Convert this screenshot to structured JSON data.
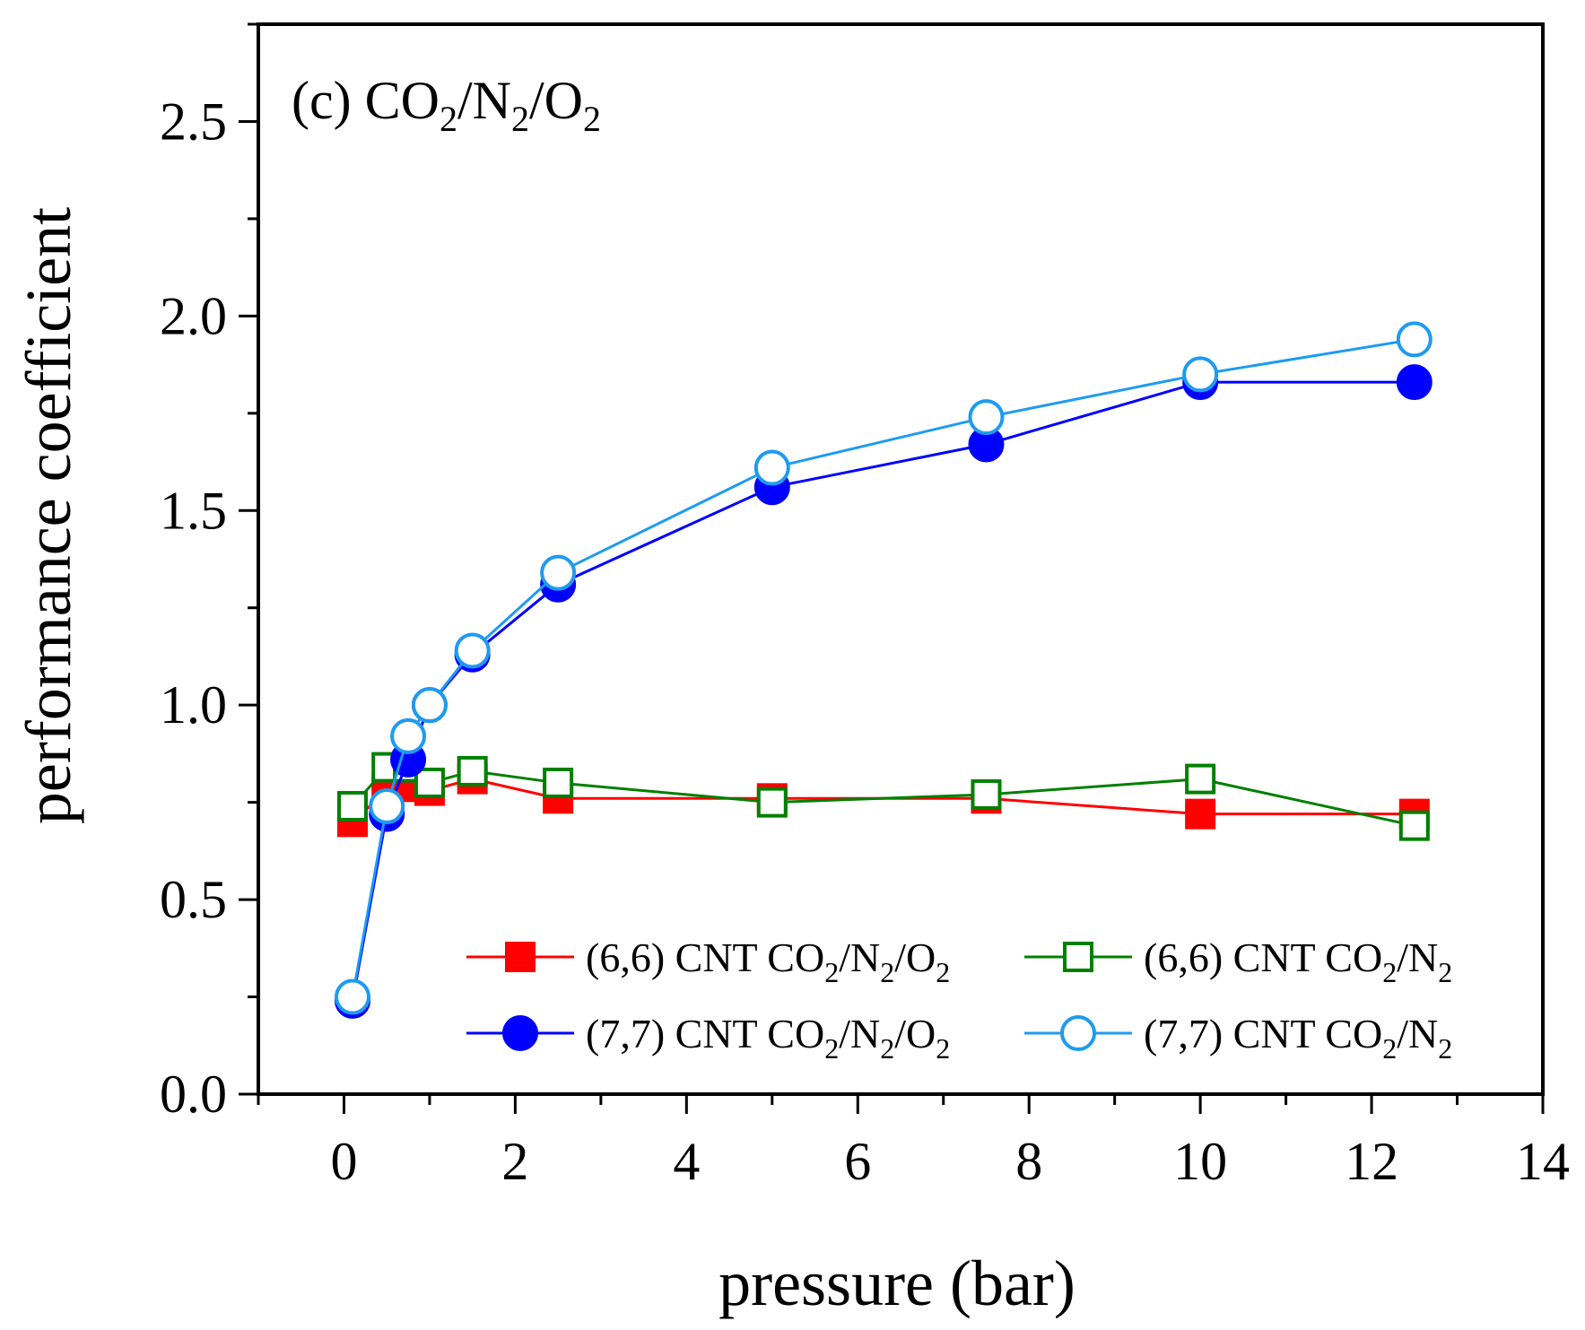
{
  "chart_data": {
    "type": "line",
    "panel_label": {
      "prefix": "(c) CO",
      "sub1": "2",
      "mid1": "/N",
      "sub2": "2",
      "mid2": "/O",
      "sub3": "2"
    },
    "xlabel": "pressure (bar)",
    "ylabel": "performance coefficient",
    "xlim": [
      -1,
      14
    ],
    "ylim": [
      0,
      2.75
    ],
    "x_ticks": [
      0,
      2,
      4,
      6,
      8,
      10,
      12,
      14
    ],
    "x_tick_labels": [
      "0",
      "2",
      "4",
      "6",
      "8",
      "10",
      "12",
      "14"
    ],
    "y_ticks": [
      0,
      0.5,
      1.0,
      1.5,
      2.0,
      2.5
    ],
    "y_tick_labels": [
      "0.0",
      "0.5",
      "1.0",
      "1.5",
      "2.0",
      "2.5"
    ],
    "grid": false,
    "legend_position": "bottom-right",
    "series": [
      {
        "legend": {
          "pre": "(6,6) CNT CO",
          "s1": "2",
          "m1": "/N",
          "s2": "2",
          "m2": "/O",
          "s3": "2"
        },
        "color": "#ff0000",
        "marker": "square-filled",
        "x": [
          0.1,
          0.5,
          0.75,
          1.0,
          1.5,
          2.5,
          5.0,
          7.5,
          10.0,
          12.5
        ],
        "y": [
          0.7,
          0.78,
          0.79,
          0.78,
          0.81,
          0.76,
          0.76,
          0.76,
          0.72,
          0.72
        ]
      },
      {
        "legend": {
          "pre": "(6,6) CNT CO",
          "s1": "2",
          "m1": "/N",
          "s2": "2",
          "m2": "",
          "s3": ""
        },
        "color": "#008000",
        "marker": "square-open",
        "x": [
          0.1,
          0.5,
          0.75,
          1.0,
          1.5,
          2.5,
          5.0,
          7.5,
          10.0,
          12.5
        ],
        "y": [
          0.74,
          0.84,
          0.84,
          0.8,
          0.83,
          0.8,
          0.75,
          0.77,
          0.81,
          0.69
        ]
      },
      {
        "legend": {
          "pre": "(7,7) CNT CO",
          "s1": "2",
          "m1": "/N",
          "s2": "2",
          "m2": "/O",
          "s3": "2"
        },
        "color": "#0000ff",
        "marker": "circle-filled",
        "x": [
          0.1,
          0.5,
          0.75,
          1.0,
          1.5,
          2.5,
          5.0,
          7.5,
          10.0,
          12.5
        ],
        "y": [
          0.24,
          0.72,
          0.86,
          1.0,
          1.13,
          1.31,
          1.56,
          1.67,
          1.83,
          1.83
        ]
      },
      {
        "legend": {
          "pre": "(7,7) CNT CO",
          "s1": "2",
          "m1": "/N",
          "s2": "2",
          "m2": "",
          "s3": ""
        },
        "color": "#1e9bf0",
        "marker": "circle-open",
        "x": [
          0.1,
          0.5,
          0.75,
          1.0,
          1.5,
          2.5,
          5.0,
          7.5,
          10.0,
          12.5
        ],
        "y": [
          0.25,
          0.74,
          0.92,
          1.0,
          1.14,
          1.34,
          1.61,
          1.74,
          1.85,
          1.94
        ]
      }
    ]
  }
}
